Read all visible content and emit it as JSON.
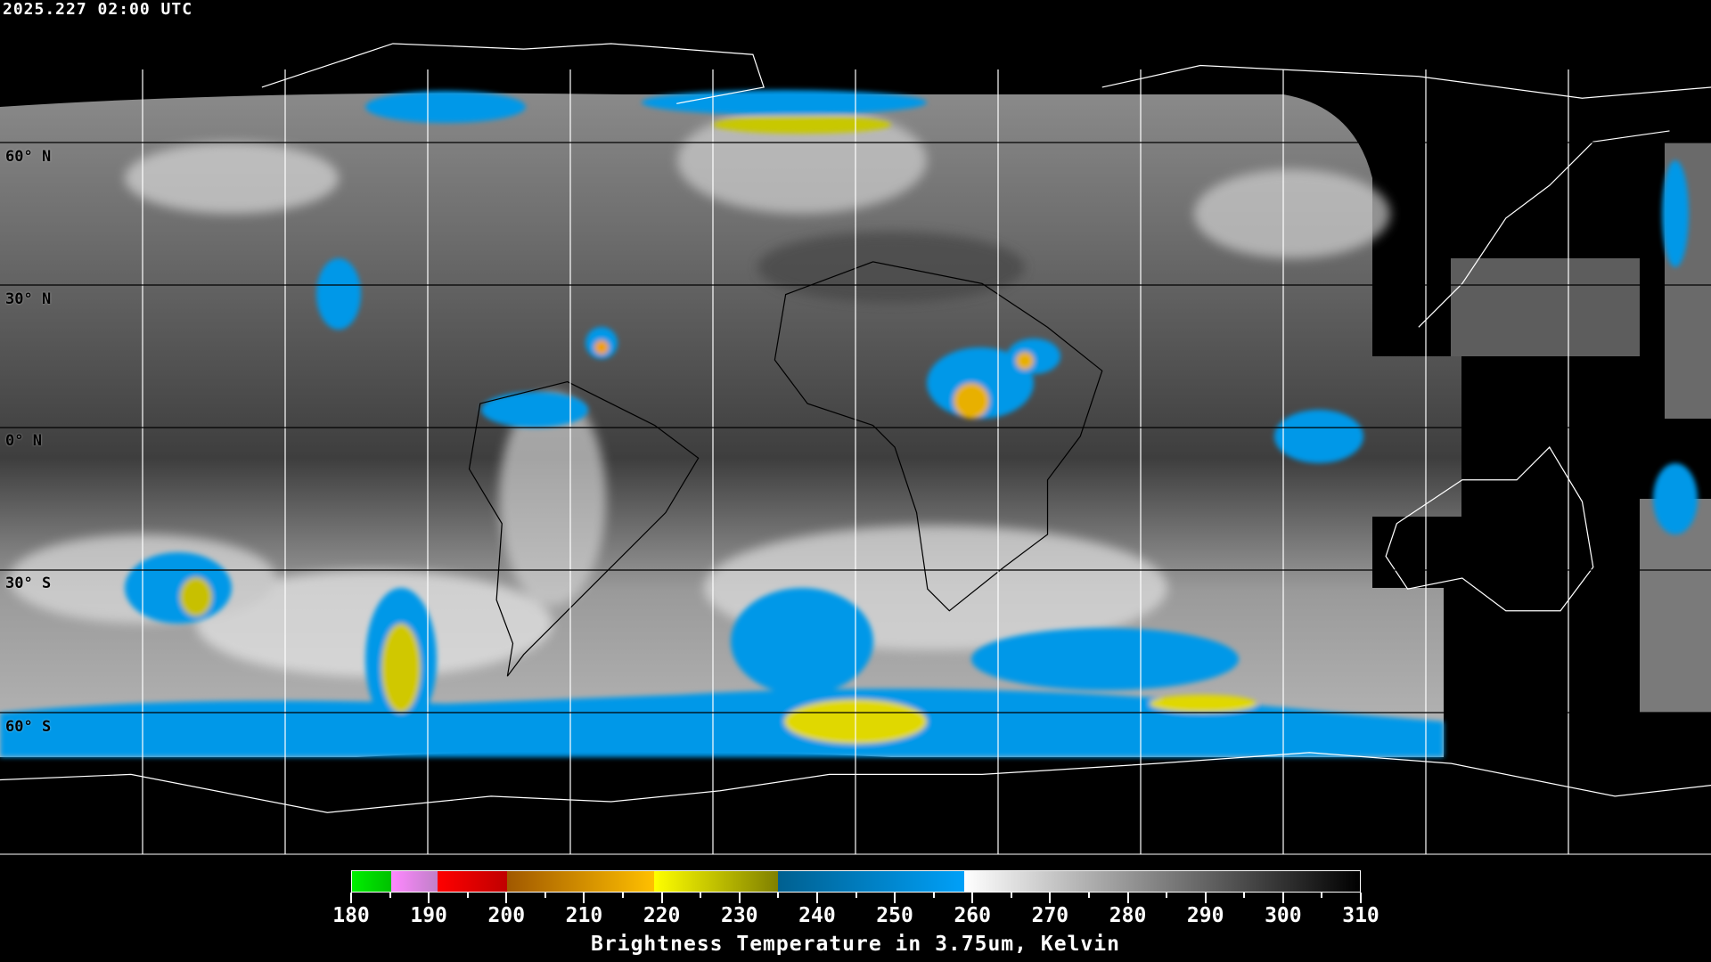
{
  "header": {
    "timestamp": "2025.227 02:00 UTC"
  },
  "map": {
    "projection": "equirectangular",
    "grid_spacing_deg": 30,
    "latitude_labels": [
      "60° N",
      "30° N",
      "0° N",
      "30° S",
      "60° S"
    ],
    "grid_color": "#ffffff",
    "no_data_color": "#000000"
  },
  "colorbar": {
    "title": "Brightness Temperature in 3.75um, Kelvin",
    "min": 180,
    "max": 310,
    "tick_labels": [
      "180",
      "190",
      "200",
      "210",
      "220",
      "230",
      "240",
      "250",
      "260",
      "270",
      "280",
      "290",
      "300",
      "310"
    ],
    "segments": [
      {
        "from": 180,
        "to": 185,
        "colors": [
          "#00f000",
          "#00c000"
        ]
      },
      {
        "from": 185,
        "to": 191,
        "colors": [
          "#ff88ff",
          "#c080c8"
        ]
      },
      {
        "from": 191,
        "to": 200,
        "colors": [
          "#ff0000",
          "#c00000"
        ]
      },
      {
        "from": 200,
        "to": 219,
        "colors": [
          "#a05800",
          "#ffc000"
        ]
      },
      {
        "from": 219,
        "to": 235,
        "colors": [
          "#ffff00",
          "#808000"
        ]
      },
      {
        "from": 235,
        "to": 259,
        "colors": [
          "#006090",
          "#00a0f8"
        ]
      },
      {
        "from": 259,
        "to": 310,
        "colors": [
          "#ffffff",
          "#000000"
        ]
      }
    ]
  }
}
